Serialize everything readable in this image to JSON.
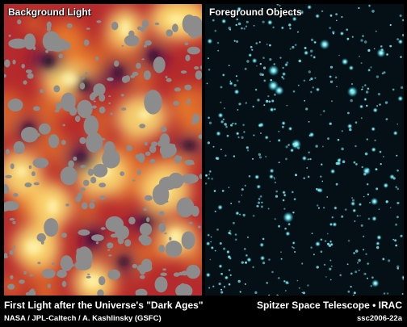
{
  "panels": {
    "left": {
      "label": "Background Light"
    },
    "right": {
      "label": "Foreground Objects"
    }
  },
  "caption": {
    "title": "First Light after the Universe's \"Dark Ages\"",
    "credit": "NASA / JPL-Caltech / A. Kashlinsky (GSFC)",
    "mission": "Spitzer Space Telescope • IRAC",
    "image_id": "ssc2006-22a"
  },
  "colors": {
    "heat_base": "#b52a2c",
    "heat_hot": "#ffe97a",
    "heat_warm": "#f08a2c",
    "heat_dark": "#4b1150",
    "mask_gray": "#8c8c8c",
    "star_cyan": "#7ff4ff",
    "starfield_bg": "#041016"
  }
}
